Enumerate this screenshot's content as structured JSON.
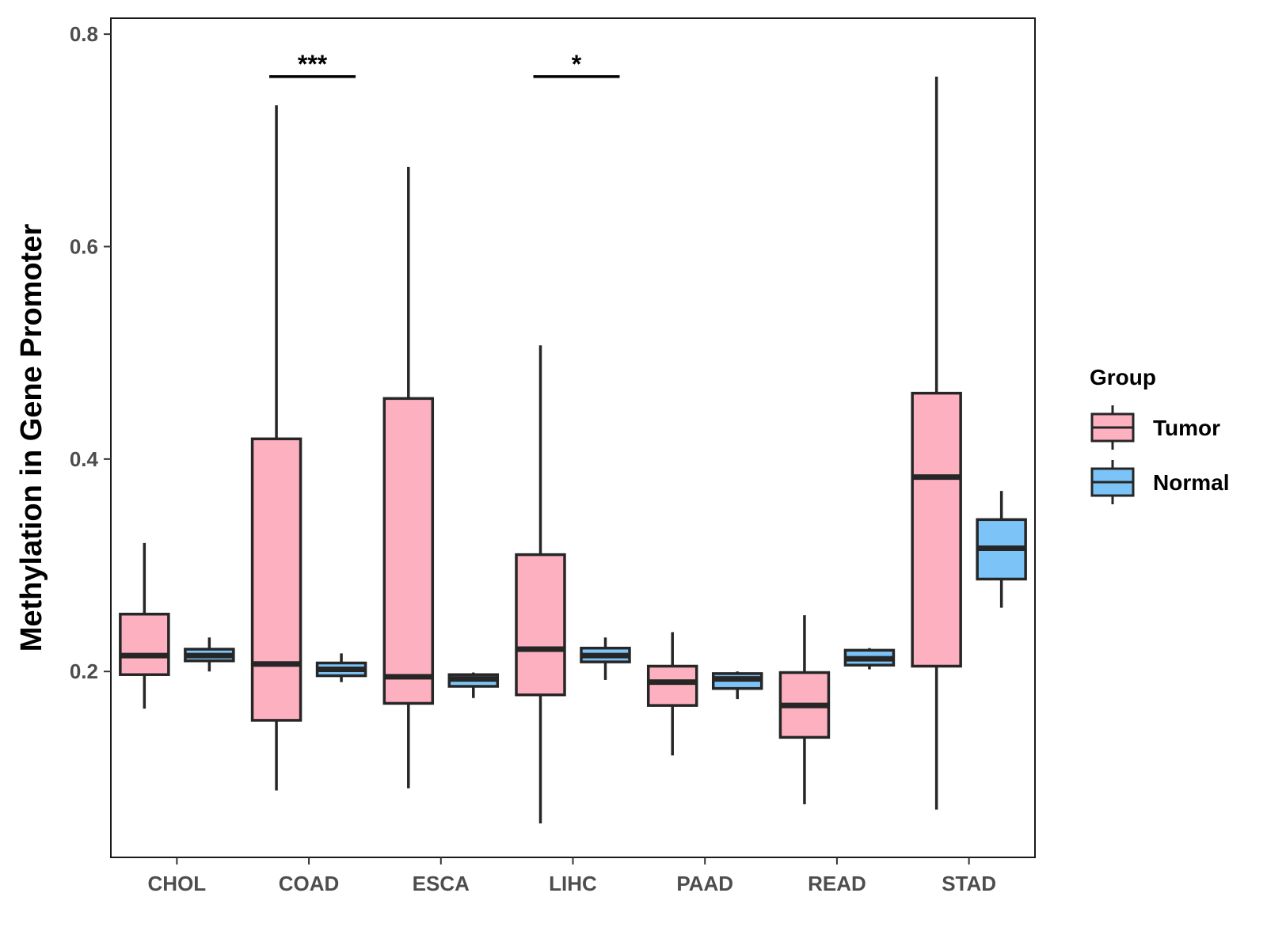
{
  "chart_data": {
    "type": "boxplot",
    "title": "",
    "xlabel": "",
    "ylabel": "Methylation in Gene Promoter",
    "ylim": [
      0.025,
      0.815
    ],
    "yticks": [
      0.2,
      0.4,
      0.6,
      0.8
    ],
    "ytick_labels": [
      "0.2",
      "0.4",
      "0.6",
      "0.8"
    ],
    "categories": [
      "CHOL",
      "COAD",
      "ESCA",
      "LIHC",
      "PAAD",
      "READ",
      "STAD"
    ],
    "legend": {
      "title": "Group",
      "position": "right",
      "entries": [
        {
          "name": "Tumor",
          "color": "#FDB0C0"
        },
        {
          "name": "Normal",
          "color": "#7CC4F7"
        }
      ]
    },
    "series": [
      {
        "name": "Tumor",
        "color": "#FDB0C0",
        "boxes": [
          {
            "category": "CHOL",
            "whisker_low": 0.165,
            "q1": 0.197,
            "median": 0.215,
            "q3": 0.254,
            "whisker_high": 0.321
          },
          {
            "category": "COAD",
            "whisker_low": 0.088,
            "q1": 0.154,
            "median": 0.207,
            "q3": 0.419,
            "whisker_high": 0.733
          },
          {
            "category": "ESCA",
            "whisker_low": 0.09,
            "q1": 0.17,
            "median": 0.195,
            "q3": 0.457,
            "whisker_high": 0.675
          },
          {
            "category": "LIHC",
            "whisker_low": 0.057,
            "q1": 0.178,
            "median": 0.221,
            "q3": 0.31,
            "whisker_high": 0.507
          },
          {
            "category": "PAAD",
            "whisker_low": 0.121,
            "q1": 0.168,
            "median": 0.19,
            "q3": 0.205,
            "whisker_high": 0.237
          },
          {
            "category": "READ",
            "whisker_low": 0.075,
            "q1": 0.138,
            "median": 0.168,
            "q3": 0.199,
            "whisker_high": 0.253
          },
          {
            "category": "STAD",
            "whisker_low": 0.07,
            "q1": 0.205,
            "median": 0.383,
            "q3": 0.462,
            "whisker_high": 0.76
          }
        ]
      },
      {
        "name": "Normal",
        "color": "#7CC4F7",
        "boxes": [
          {
            "category": "CHOL",
            "whisker_low": 0.2,
            "q1": 0.21,
            "median": 0.215,
            "q3": 0.221,
            "whisker_high": 0.232
          },
          {
            "category": "COAD",
            "whisker_low": 0.19,
            "q1": 0.196,
            "median": 0.202,
            "q3": 0.208,
            "whisker_high": 0.217
          },
          {
            "category": "ESCA",
            "whisker_low": 0.175,
            "q1": 0.186,
            "median": 0.193,
            "q3": 0.197,
            "whisker_high": 0.199
          },
          {
            "category": "LIHC",
            "whisker_low": 0.192,
            "q1": 0.209,
            "median": 0.215,
            "q3": 0.222,
            "whisker_high": 0.232
          },
          {
            "category": "PAAD",
            "whisker_low": 0.174,
            "q1": 0.184,
            "median": 0.193,
            "q3": 0.198,
            "whisker_high": 0.2
          },
          {
            "category": "READ",
            "whisker_low": 0.202,
            "q1": 0.206,
            "median": 0.212,
            "q3": 0.22,
            "whisker_high": 0.222
          },
          {
            "category": "STAD",
            "whisker_low": 0.26,
            "q1": 0.287,
            "median": 0.316,
            "q3": 0.343,
            "whisker_high": 0.37
          }
        ]
      }
    ],
    "annotations": [
      {
        "category": "COAD",
        "label": "***",
        "y": 0.76
      },
      {
        "category": "LIHC",
        "label": "*",
        "y": 0.76
      }
    ]
  }
}
